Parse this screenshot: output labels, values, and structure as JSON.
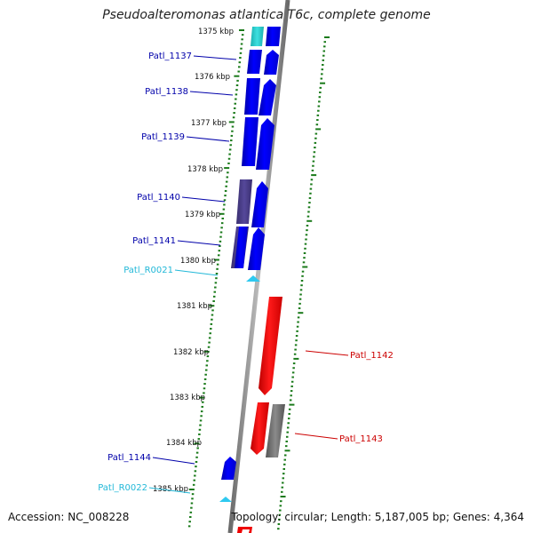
{
  "title": "Pseudoalteromonas atlantica T6c, complete genome",
  "footer": {
    "accession": "Accession: NC_008228",
    "stats": "Topology: circular; Length: 5,187,005 bp; Genes: 4,364"
  },
  "colors": {
    "cds_forward": "#0000ee",
    "cds_reverse": "#ee0000",
    "rrna": "#2ec9f0",
    "cds_other": "#4a3f86",
    "tick": "#1a7a1a",
    "backbone": "#8c8c8c",
    "label_blue": "#0000aa",
    "label_cyan": "#22b8d8",
    "label_red": "#cc0000"
  },
  "scale_labels": [
    "1375 kbp",
    "1376 kbp",
    "1377 kbp",
    "1378 kbp",
    "1379 kbp",
    "1380 kbp",
    "1381 kbp",
    "1382 kbp",
    "1383 kbp",
    "1384 kbp",
    "1385 kbp"
  ],
  "gene_labels": [
    {
      "text": "Patl_1137",
      "color": "label_blue"
    },
    {
      "text": "Patl_1138",
      "color": "label_blue"
    },
    {
      "text": "Patl_1139",
      "color": "label_blue"
    },
    {
      "text": "Patl_1140",
      "color": "label_blue"
    },
    {
      "text": "Patl_1141",
      "color": "label_blue"
    },
    {
      "text": "Patl_R0021",
      "color": "label_cyan"
    },
    {
      "text": "Patl_1142",
      "color": "label_red"
    },
    {
      "text": "Patl_1143",
      "color": "label_red"
    },
    {
      "text": "Patl_1144",
      "color": "label_blue"
    },
    {
      "text": "Patl_R0022",
      "color": "label_cyan"
    }
  ]
}
